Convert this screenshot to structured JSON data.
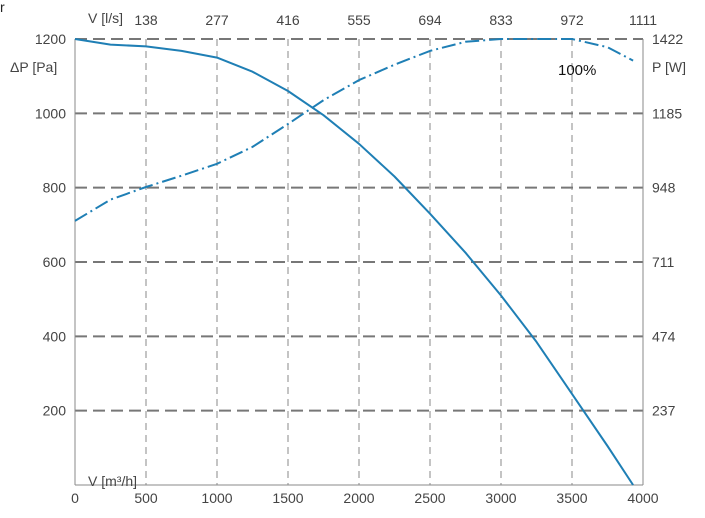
{
  "corner_mark": "r",
  "chart_data": {
    "type": "line",
    "colors": {
      "curve": "#1f7fb5",
      "grid": "#8a8a8a",
      "frame": "#8a8a8a",
      "text": "#444444"
    },
    "x": {
      "label": "V [m³/h]",
      "range": [
        0,
        4000
      ],
      "ticks": [
        0,
        500,
        1000,
        1500,
        2000,
        2500,
        3000,
        3500,
        4000
      ],
      "tick_labels": [
        "0",
        "500",
        "1000",
        "1500",
        "2000",
        "2500",
        "3000",
        "3500",
        "4000"
      ]
    },
    "x_top": {
      "label": "V [l/s]",
      "ticks_m3h": [
        500,
        1000,
        1500,
        2000,
        2500,
        3000,
        3500,
        4000
      ],
      "tick_labels": [
        "138",
        "277",
        "416",
        "555",
        "694",
        "833",
        "972",
        "1111"
      ]
    },
    "y_left": {
      "label": "ΔP [Pa]",
      "range": [
        0,
        1200
      ],
      "ticks": [
        200,
        400,
        600,
        800,
        1000,
        1200
      ],
      "tick_labels": [
        "200",
        "400",
        "600",
        "800",
        "1000",
        "1200"
      ]
    },
    "y_right": {
      "label": "P [W]",
      "range": [
        0,
        1422
      ],
      "ticks": [
        237,
        474,
        711,
        948,
        1185,
        1422
      ],
      "tick_labels": [
        "237",
        "474",
        "711",
        "948",
        "1185",
        "1422"
      ]
    },
    "grid": true,
    "series": [
      {
        "axis": "left",
        "style": "solid",
        "points": [
          [
            0,
            1200
          ],
          [
            250,
            1185
          ],
          [
            500,
            1180
          ],
          [
            750,
            1168
          ],
          [
            1000,
            1150
          ],
          [
            1250,
            1112
          ],
          [
            1500,
            1060
          ],
          [
            1750,
            995
          ],
          [
            2000,
            918
          ],
          [
            2250,
            830
          ],
          [
            2500,
            730
          ],
          [
            2750,
            625
          ],
          [
            3000,
            510
          ],
          [
            3250,
            385
          ],
          [
            3500,
            245
          ],
          [
            3750,
            105
          ],
          [
            3930,
            0
          ]
        ]
      },
      {
        "axis": "right",
        "style": "dash-dot",
        "points": [
          [
            0,
            842
          ],
          [
            250,
            910
          ],
          [
            500,
            950
          ],
          [
            750,
            986
          ],
          [
            1000,
            1024
          ],
          [
            1250,
            1078
          ],
          [
            1500,
            1151
          ],
          [
            1750,
            1227
          ],
          [
            2000,
            1291
          ],
          [
            2250,
            1340
          ],
          [
            2500,
            1384
          ],
          [
            2750,
            1413
          ],
          [
            3000,
            1422
          ],
          [
            3250,
            1422
          ],
          [
            3500,
            1422
          ],
          [
            3750,
            1396
          ],
          [
            3930,
            1353
          ]
        ]
      }
    ],
    "annotations": [
      {
        "text": "100%",
        "x": 3550,
        "y_right": 1360
      }
    ]
  }
}
